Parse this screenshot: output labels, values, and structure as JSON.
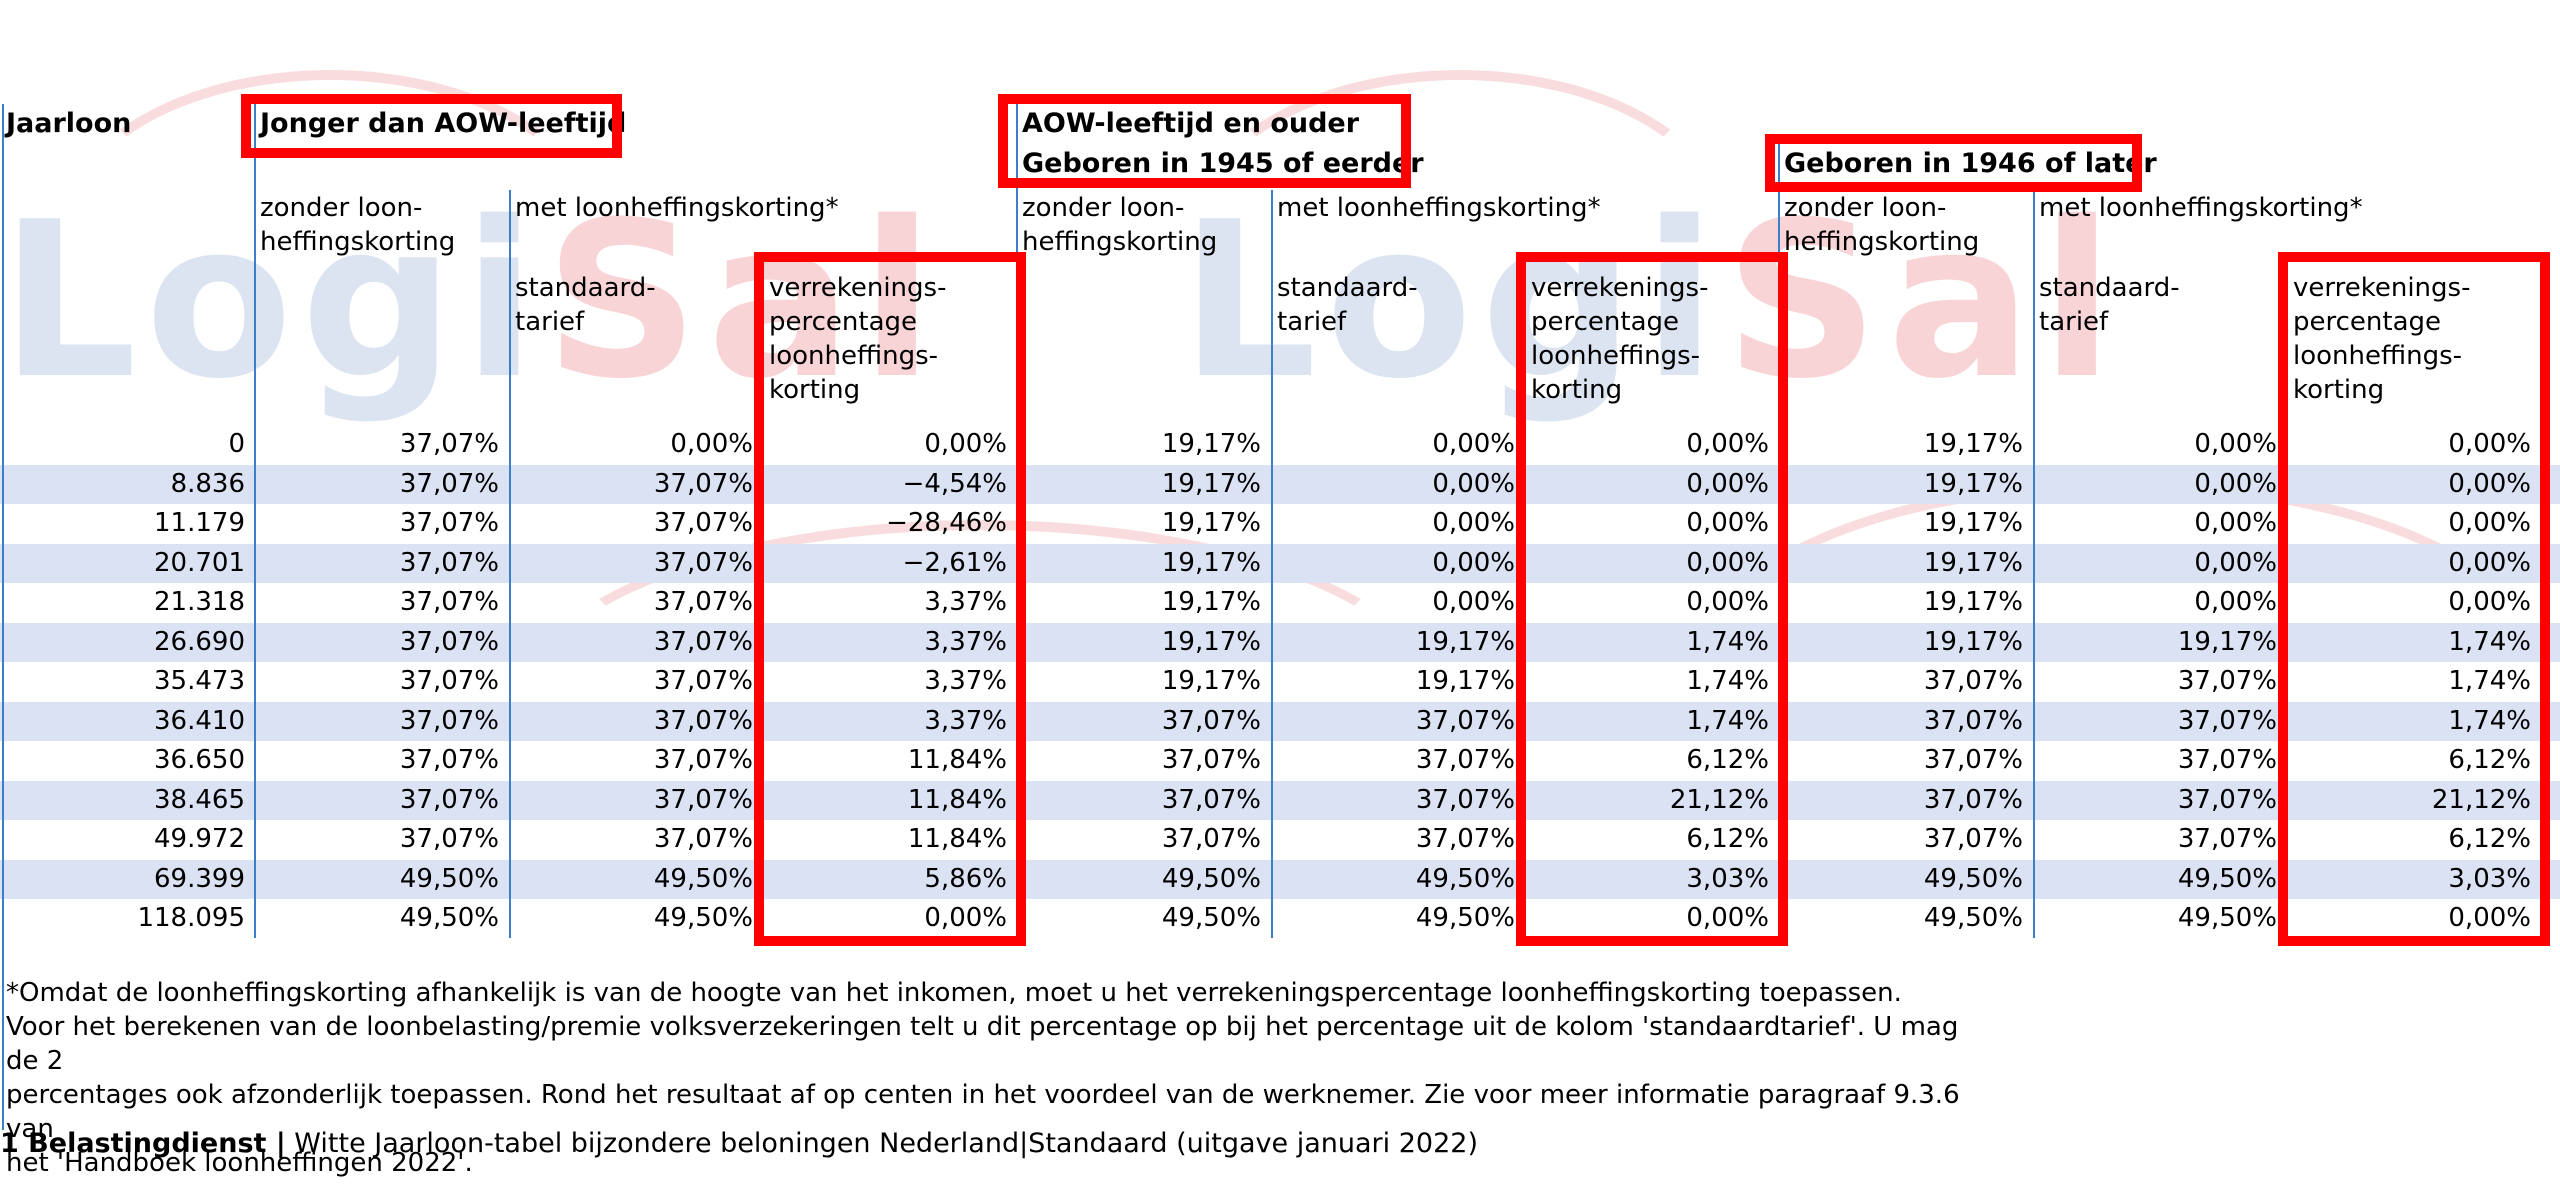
{
  "watermark": {
    "part_blue": "Logi",
    "part_red": "Sal"
  },
  "headers": {
    "jaarloon": "Jaarloon",
    "group1_title": "Jonger dan AOW-leeftijd",
    "group2_title_line1": "AOW-leeftijd en ouder",
    "group2_title_line2": "Geboren in 1945 of eerder",
    "group3_title": "Geboren in 1946 of later",
    "zonder_line1": "zonder loon-",
    "zonder_line2": "heffingskorting",
    "met": "met loonheffingskorting*",
    "standaard_line1": "standaard-",
    "standaard_line2": "tarief",
    "verr_line1": "verrekenings-",
    "verr_line2": "percentage",
    "verr_line3": "loonheffings-",
    "verr_line4": "korting"
  },
  "rows": [
    [
      "0",
      "37,07%",
      "0,00%",
      "0,00%",
      "19,17%",
      "0,00%",
      "0,00%",
      "19,17%",
      "0,00%",
      "0,00%"
    ],
    [
      "8.836",
      "37,07%",
      "37,07%",
      "−4,54%",
      "19,17%",
      "0,00%",
      "0,00%",
      "19,17%",
      "0,00%",
      "0,00%"
    ],
    [
      "11.179",
      "37,07%",
      "37,07%",
      "−28,46%",
      "19,17%",
      "0,00%",
      "0,00%",
      "19,17%",
      "0,00%",
      "0,00%"
    ],
    [
      "20.701",
      "37,07%",
      "37,07%",
      "−2,61%",
      "19,17%",
      "0,00%",
      "0,00%",
      "19,17%",
      "0,00%",
      "0,00%"
    ],
    [
      "21.318",
      "37,07%",
      "37,07%",
      "3,37%",
      "19,17%",
      "0,00%",
      "0,00%",
      "19,17%",
      "0,00%",
      "0,00%"
    ],
    [
      "26.690",
      "37,07%",
      "37,07%",
      "3,37%",
      "19,17%",
      "19,17%",
      "1,74%",
      "19,17%",
      "19,17%",
      "1,74%"
    ],
    [
      "35.473",
      "37,07%",
      "37,07%",
      "3,37%",
      "19,17%",
      "19,17%",
      "1,74%",
      "37,07%",
      "37,07%",
      "1,74%"
    ],
    [
      "36.410",
      "37,07%",
      "37,07%",
      "3,37%",
      "37,07%",
      "37,07%",
      "1,74%",
      "37,07%",
      "37,07%",
      "1,74%"
    ],
    [
      "36.650",
      "37,07%",
      "37,07%",
      "11,84%",
      "37,07%",
      "37,07%",
      "6,12%",
      "37,07%",
      "37,07%",
      "6,12%"
    ],
    [
      "38.465",
      "37,07%",
      "37,07%",
      "11,84%",
      "37,07%",
      "37,07%",
      "21,12%",
      "37,07%",
      "37,07%",
      "21,12%"
    ],
    [
      "49.972",
      "37,07%",
      "37,07%",
      "11,84%",
      "37,07%",
      "37,07%",
      "6,12%",
      "37,07%",
      "37,07%",
      "6,12%"
    ],
    [
      "69.399",
      "49,50%",
      "49,50%",
      "5,86%",
      "49,50%",
      "49,50%",
      "3,03%",
      "49,50%",
      "49,50%",
      "3,03%"
    ],
    [
      "118.095",
      "49,50%",
      "49,50%",
      "0,00%",
      "49,50%",
      "49,50%",
      "0,00%",
      "49,50%",
      "49,50%",
      "0,00%"
    ]
  ],
  "footnote": {
    "line1": "*Omdat de loonheffingskorting afhankelijk is van de hoogte van het inkomen, moet u het verrekeningspercentage loonheffingskorting toepassen.",
    "line2": "Voor het berekenen van de loonbelasting/premie volksverzekeringen telt u dit percentage op bij het percentage uit de kolom 'standaardtarief'. U mag de 2",
    "line3": "percentages ook afzonderlijk toepassen. Rond het resultaat af op centen in het voordeel van de werknemer. Zie voor meer informatie paragraaf 9.3.6 van",
    "line4": "het 'Handboek loonheffingen 2022'."
  },
  "footer": {
    "page_label": "1 Belastingdienst |",
    "doc_title": "Witte Jaarloon-tabel bijzondere beloningen Nederland|Standaard (uitgave januari 2022)"
  },
  "colors": {
    "highlight_red": "#ff0000",
    "stripe": "#dbe2f3",
    "divider": "#3a7fc8"
  }
}
